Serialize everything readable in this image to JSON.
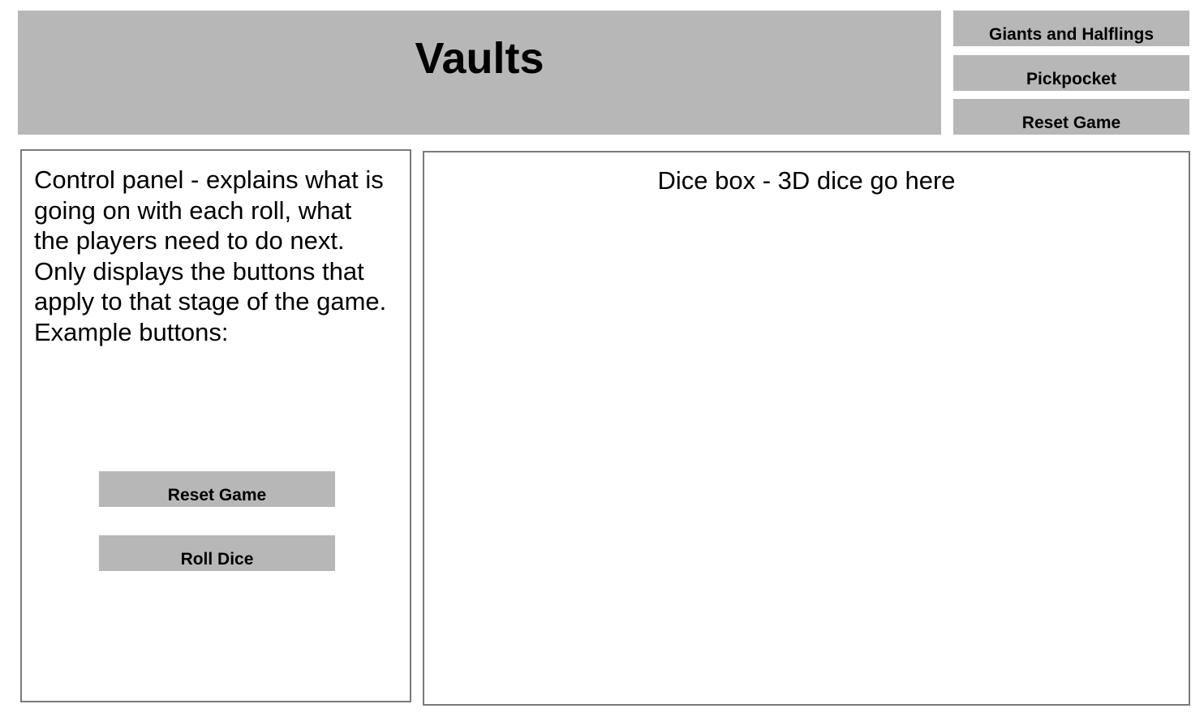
{
  "header": {
    "title": "Vaults"
  },
  "nav": {
    "giants_label": "Giants and Halflings",
    "pickpocket_label": "Pickpocket",
    "reset_label": "Reset Game"
  },
  "control_panel": {
    "description": "Control panel - explains what is\ngoing on with each roll, what\nthe players need to do next.\nOnly displays the buttons that\napply to that stage of the game.\nExample buttons:",
    "reset_label": "Reset Game",
    "roll_label": "Roll Dice"
  },
  "dice_box": {
    "text": "Dice box - 3D dice go here"
  },
  "colors": {
    "button_bg": "#b7b7b7",
    "border": "#7a7a7a",
    "background": "#ffffff"
  }
}
